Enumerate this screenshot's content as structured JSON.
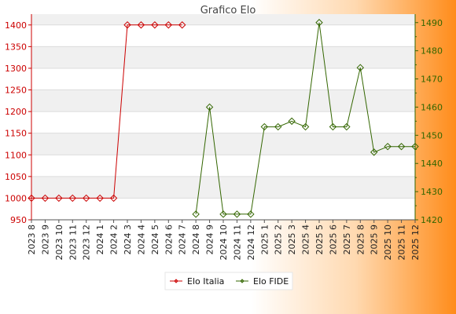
{
  "chart_data": {
    "type": "line",
    "title": "Grafico Elo",
    "categories": [
      "2023 8",
      "2023 9",
      "2023 10",
      "2023 11",
      "2023 12",
      "2024 1",
      "2024 2",
      "2024 3",
      "2024 4",
      "2024 5",
      "2024 6",
      "2024 7",
      "2024 8",
      "2024 9",
      "2024 10",
      "2024 11",
      "2024 12",
      "2025 1",
      "2025 2",
      "2025 3",
      "2025 4",
      "2025 5",
      "2025 6",
      "2025 7",
      "2025 8",
      "2025 9",
      "2025 10",
      "2025 11",
      "2025 12"
    ],
    "y_left": {
      "ticks": [
        950,
        1000,
        1050,
        1100,
        1150,
        1200,
        1250,
        1300,
        1350,
        1400
      ],
      "range": [
        950,
        1425
      ],
      "color": "#cc0000"
    },
    "y_right": {
      "ticks": [
        1420,
        1430,
        1440,
        1450,
        1460,
        1470,
        1480,
        1490
      ],
      "range": [
        1420,
        1493
      ],
      "color": "#336600"
    },
    "series": [
      {
        "name": "Elo Italia",
        "axis": "left",
        "color": "#cc0000",
        "values": [
          1000,
          1000,
          1000,
          1000,
          1000,
          1000,
          1000,
          1400,
          1400,
          1400,
          1400,
          1400,
          null,
          null,
          null,
          null,
          null,
          null,
          null,
          null,
          null,
          null,
          null,
          null,
          null,
          null,
          null,
          null,
          null
        ]
      },
      {
        "name": "Elo FIDE",
        "axis": "right",
        "color": "#336600",
        "values": [
          null,
          null,
          null,
          null,
          null,
          null,
          null,
          null,
          null,
          null,
          null,
          null,
          1422,
          1460,
          1422,
          1422,
          1422,
          1453,
          1453,
          1455,
          1453,
          1490,
          1453,
          1453,
          1474,
          1444,
          1446,
          1446,
          1446
        ]
      }
    ],
    "grid": "horizontal bands",
    "legend_position": "bottom"
  }
}
